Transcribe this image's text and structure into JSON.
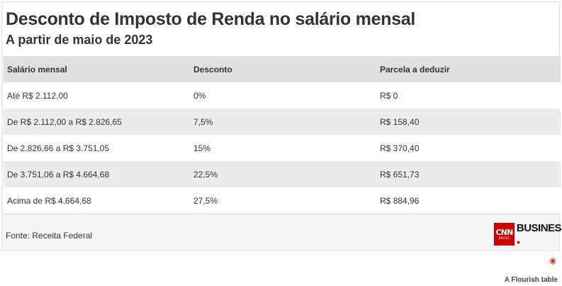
{
  "header": {
    "title": "Desconto de Imposto de Renda no salário mensal",
    "subtitle": "A partir de maio de 2023"
  },
  "table": {
    "columns": [
      "Salário mensal",
      "Desconto",
      "Parcela a deduzir"
    ],
    "rows": [
      [
        "Até R$ 2.112,00",
        "0%",
        "R$ 0"
      ],
      [
        "De R$ 2.112,00 a R$ 2.826,65",
        "7,5%",
        "R$ 158,40"
      ],
      [
        "De 2.826,66 a R$ 3.751,05",
        "15%",
        "R$ 370,40"
      ],
      [
        "De 3.751,06 a R$ 4.664,68",
        "22,5%",
        "R$ 651,73"
      ],
      [
        "Acima de R$ 4.664,68",
        "27,5%",
        "R$ 884,96"
      ]
    ]
  },
  "footer": {
    "source": "Fonte: Receita Federal",
    "logo": {
      "mark": "CNN",
      "mark_sub": "BRASIL",
      "wordmark": "BUSINESS"
    }
  },
  "branding": {
    "flourish_label": "A Flourish table",
    "flourish_icon": "flourish-logo-icon"
  },
  "colors": {
    "accent": "#cc0000",
    "header_row": "#e0e0e0",
    "stripe": "#ececec"
  }
}
